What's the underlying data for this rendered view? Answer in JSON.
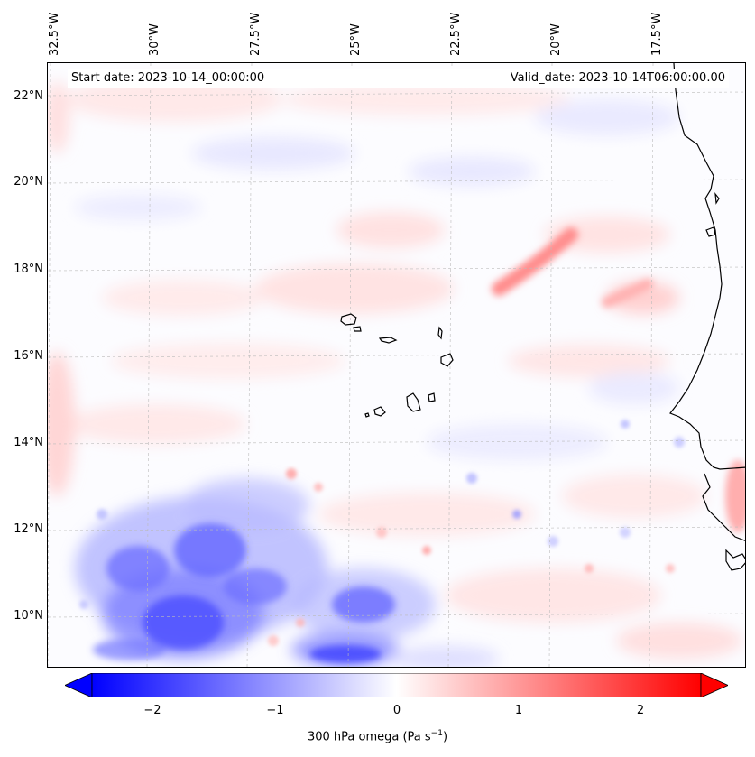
{
  "map": {
    "start_date_label": "Start date: 2023-10-14_00:00:00",
    "valid_date_label": "Valid_date: 2023-10-14T06:00:00.00",
    "lon_ticks": [
      "32.5°W",
      "30°W",
      "27.5°W",
      "25°W",
      "22.5°W",
      "20°W",
      "17.5°W"
    ],
    "lat_ticks": [
      "22°N",
      "20°N",
      "18°N",
      "16°N",
      "14°N",
      "12°N",
      "10°N"
    ],
    "extent": {
      "lon_min": -32.7,
      "lon_max": -15.8,
      "lat_min": 8.9,
      "lat_max": 22.8
    },
    "field": "300 hPa omega",
    "coastline_color": "#000000",
    "gridline_color": "#bbbbbb"
  },
  "colorbar": {
    "label_main": "300 hPa omega (Pa s",
    "label_sup": "−1",
    "label_end": ")",
    "ticks": [
      "−2",
      "−1",
      "0",
      "1",
      "2"
    ],
    "tick_values": [
      -2,
      -1,
      0,
      1,
      2
    ],
    "range": [
      -2.6,
      2.6
    ],
    "cmap": "bwr",
    "negative_color": "#0000ff",
    "positive_color": "#ff0000",
    "extend": "both"
  }
}
